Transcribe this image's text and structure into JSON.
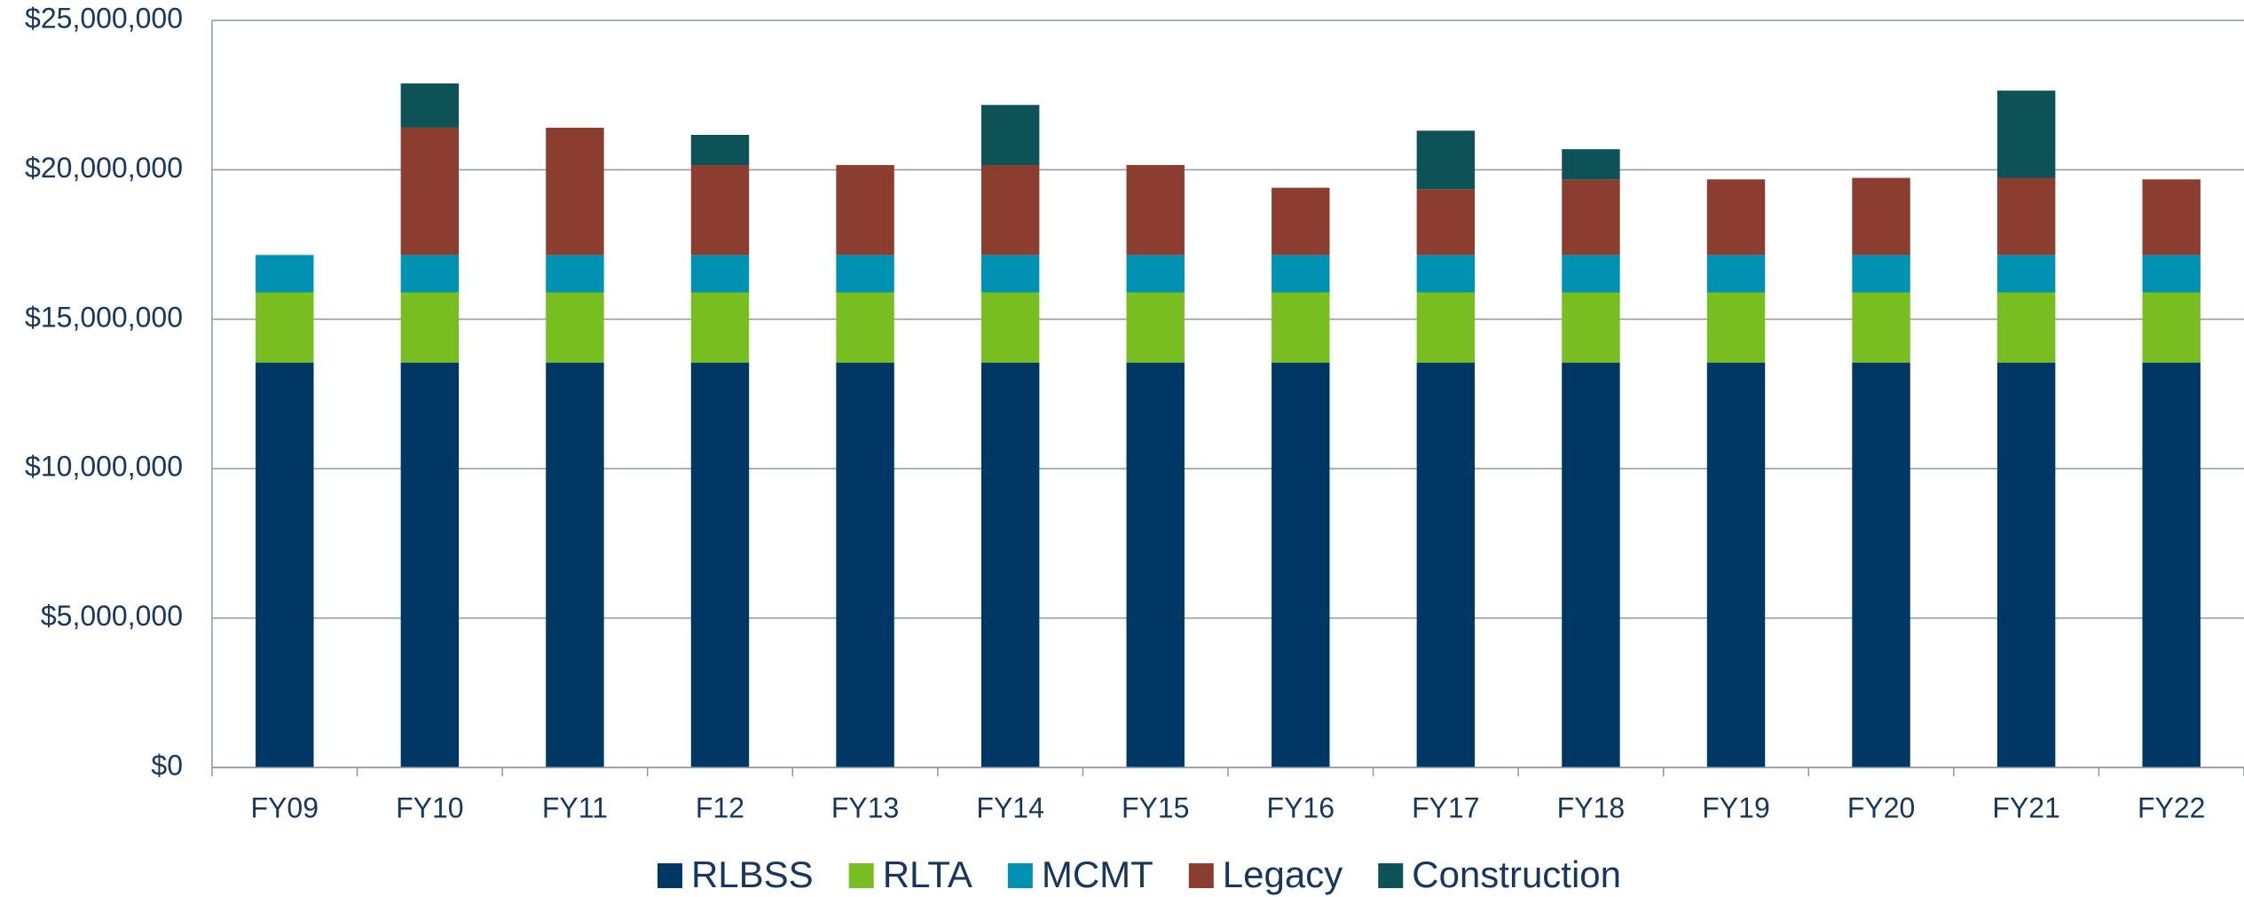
{
  "chart_data": {
    "type": "stacked_bar",
    "categories": [
      "FY09",
      "FY10",
      "FY11",
      "F12",
      "FY13",
      "FY14",
      "FY15",
      "FY16",
      "FY17",
      "FY18",
      "FY19",
      "FY20",
      "FY21",
      "FY22"
    ],
    "series": [
      {
        "name": "RLBSS",
        "color": "#003865",
        "values": [
          13550000,
          13550000,
          13550000,
          13550000,
          13550000,
          13550000,
          13550000,
          13550000,
          13550000,
          13550000,
          13550000,
          13550000,
          13550000,
          13550000
        ]
      },
      {
        "name": "RLTA",
        "color": "#78be20",
        "values": [
          2350000,
          2350000,
          2350000,
          2350000,
          2350000,
          2350000,
          2350000,
          2350000,
          2350000,
          2350000,
          2350000,
          2350000,
          2350000,
          2350000
        ]
      },
      {
        "name": "MCMT",
        "color": "#0091b3",
        "values": [
          1250000,
          1250000,
          1250000,
          1250000,
          1250000,
          1250000,
          1250000,
          1250000,
          1250000,
          1250000,
          1250000,
          1250000,
          1250000,
          1250000
        ]
      },
      {
        "name": "Legacy",
        "color": "#8b3e2f",
        "values": [
          0,
          4260000,
          4260000,
          3010000,
          3010000,
          3010000,
          3010000,
          2250000,
          2200000,
          2530000,
          2530000,
          2580000,
          2580000,
          2530000
        ]
      },
      {
        "name": "Construction",
        "color": "#0d5257",
        "values": [
          0,
          1480000,
          0,
          1010000,
          0,
          2010000,
          0,
          0,
          1960000,
          1010000,
          0,
          0,
          2920000,
          0
        ]
      }
    ],
    "ylim": [
      0,
      25000000
    ],
    "yticks": [
      {
        "value": 0,
        "label": "$0"
      },
      {
        "value": 5000000,
        "label": "$5,000,000"
      },
      {
        "value": 10000000,
        "label": "$10,000,000"
      },
      {
        "value": 15000000,
        "label": "$15,000,000"
      },
      {
        "value": 20000000,
        "label": "$20,000,000"
      },
      {
        "value": 25000000,
        "label": "$25,000,000"
      }
    ],
    "grid": true,
    "legend": "bottom"
  }
}
